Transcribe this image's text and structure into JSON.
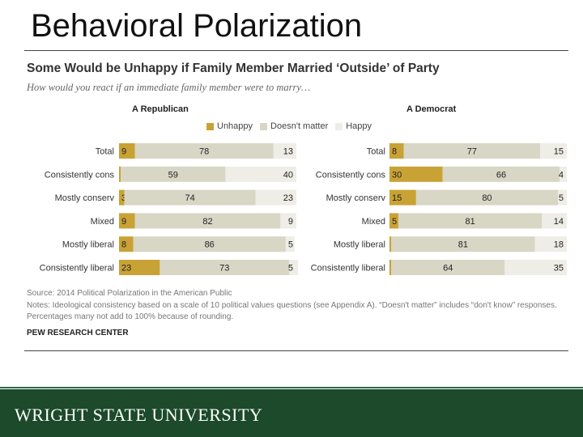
{
  "slide": {
    "title": "Behavioral Polarization"
  },
  "footer": {
    "university": "WRIGHT STATE UNIVERSITY"
  },
  "colors": {
    "unhappy": "#c9a236",
    "doesnt_matter": "#d8d6c5",
    "happy": "#eeede6",
    "footer_bg": "#1c4a2a"
  },
  "chart_data": {
    "type": "bar",
    "title": "Some Would be Unhappy  if Family Member Married ‘Outside’ of Party",
    "subtitle": "How would you react if an immediate family member were to marry…",
    "legend": [
      "Unhappy",
      "Doesn't matter",
      "Happy"
    ],
    "legend_position": "top",
    "stacked": true,
    "categories": [
      "Total",
      "Consistently cons",
      "Mostly conserv",
      "Mixed",
      "Mostly liberal",
      "Consistently liberal"
    ],
    "panels": [
      {
        "name": "A Republican",
        "series": [
          {
            "name": "Unhappy",
            "values": [
              9,
              1,
              3,
              9,
              8,
              23
            ]
          },
          {
            "name": "Doesn't matter",
            "values": [
              78,
              59,
              74,
              82,
              86,
              73
            ]
          },
          {
            "name": "Happy",
            "values": [
              13,
              40,
              23,
              9,
              5,
              5
            ]
          }
        ]
      },
      {
        "name": "A Democrat",
        "series": [
          {
            "name": "Unhappy",
            "values": [
              8,
              30,
              15,
              5,
              1,
              1
            ]
          },
          {
            "name": "Doesn't matter",
            "values": [
              77,
              66,
              80,
              81,
              81,
              64
            ]
          },
          {
            "name": "Happy",
            "values": [
              15,
              4,
              5,
              14,
              18,
              35
            ]
          }
        ]
      }
    ],
    "source": "Source: 2014 Political Polarization in the American Public",
    "notes": "Notes: Ideological consistency based on a scale of 10 political values questions (see Appendix A). “Doesn't matter” includes “don't know” responses. Percentages many not add to 100% because of rounding.",
    "credit": "PEW RESEARCH CENTER"
  }
}
